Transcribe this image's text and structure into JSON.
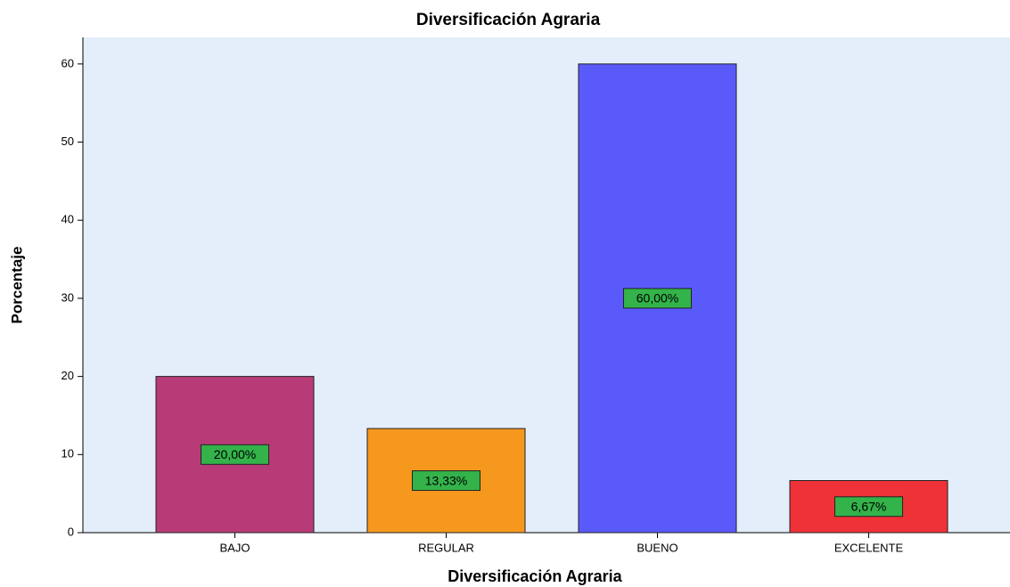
{
  "chart_data": {
    "type": "bar",
    "title": "Diversificación Agraria",
    "x_label": "Diversificación Agraria",
    "y_label": "Porcentaje",
    "categories": [
      "BAJO",
      "REGULAR",
      "BUENO",
      "EXCELENTE"
    ],
    "values": [
      20,
      13.33,
      60,
      6.67
    ],
    "value_labels": [
      "20,00%",
      "13,33%",
      "60,00%",
      "6,67%"
    ],
    "colors": [
      "#b83b78",
      "#f7981e",
      "#5a5afa",
      "#ef3237"
    ],
    "label_color": "#33b34a",
    "ylim": [
      0,
      63.4
    ],
    "yticks": [
      0,
      10,
      20,
      30,
      40,
      50,
      60
    ],
    "grid": false
  }
}
